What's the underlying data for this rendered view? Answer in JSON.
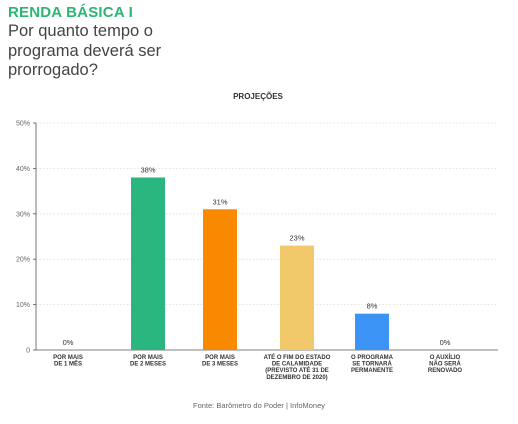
{
  "header": {
    "title": "RENDA BÁSICA I",
    "question": "Por quanto tempo o programa deverá ser prorrogado?"
  },
  "source": "Fonte: Barômetro do Poder | InfoMoney",
  "colors": {
    "title": "#2bb673",
    "gridline": "#d9d9d9",
    "axis": "#555555"
  },
  "chart_data": {
    "type": "bar",
    "title": "PROJEÇÕES",
    "ylim": [
      0,
      50
    ],
    "yticks": [
      0,
      10,
      20,
      30,
      40,
      50
    ],
    "ytick_labels": [
      "0",
      "10%",
      "20%",
      "30%",
      "40%",
      "50%"
    ],
    "grid": true,
    "categories": [
      [
        "POR MAIS",
        "DE 1 MÊS"
      ],
      [
        "POR MAIS",
        "DE 2 MESES"
      ],
      [
        "POR MAIS",
        "DE 3 MESES"
      ],
      [
        "ATÉ O FIM DO ESTADO",
        "DE CALAMIDADE",
        "(PREVISTO ATÉ 31 DE",
        "DEZEMBRO DE 2020)"
      ],
      [
        "O PROGRAMA",
        "SE TORNARÁ",
        "PERMANENTE"
      ],
      [
        "O AUXÍLIO",
        "NÃO SERÁ",
        "RENOVADO"
      ]
    ],
    "values": [
      0,
      38,
      31,
      23,
      8,
      0
    ],
    "value_labels": [
      "0%",
      "38%",
      "31%",
      "23%",
      "8%",
      "0%"
    ],
    "bar_colors": [
      "#2bb673",
      "#2bb67f",
      "#f98a00",
      "#f2c96a",
      "#3b93f5",
      "#cccccc"
    ]
  }
}
